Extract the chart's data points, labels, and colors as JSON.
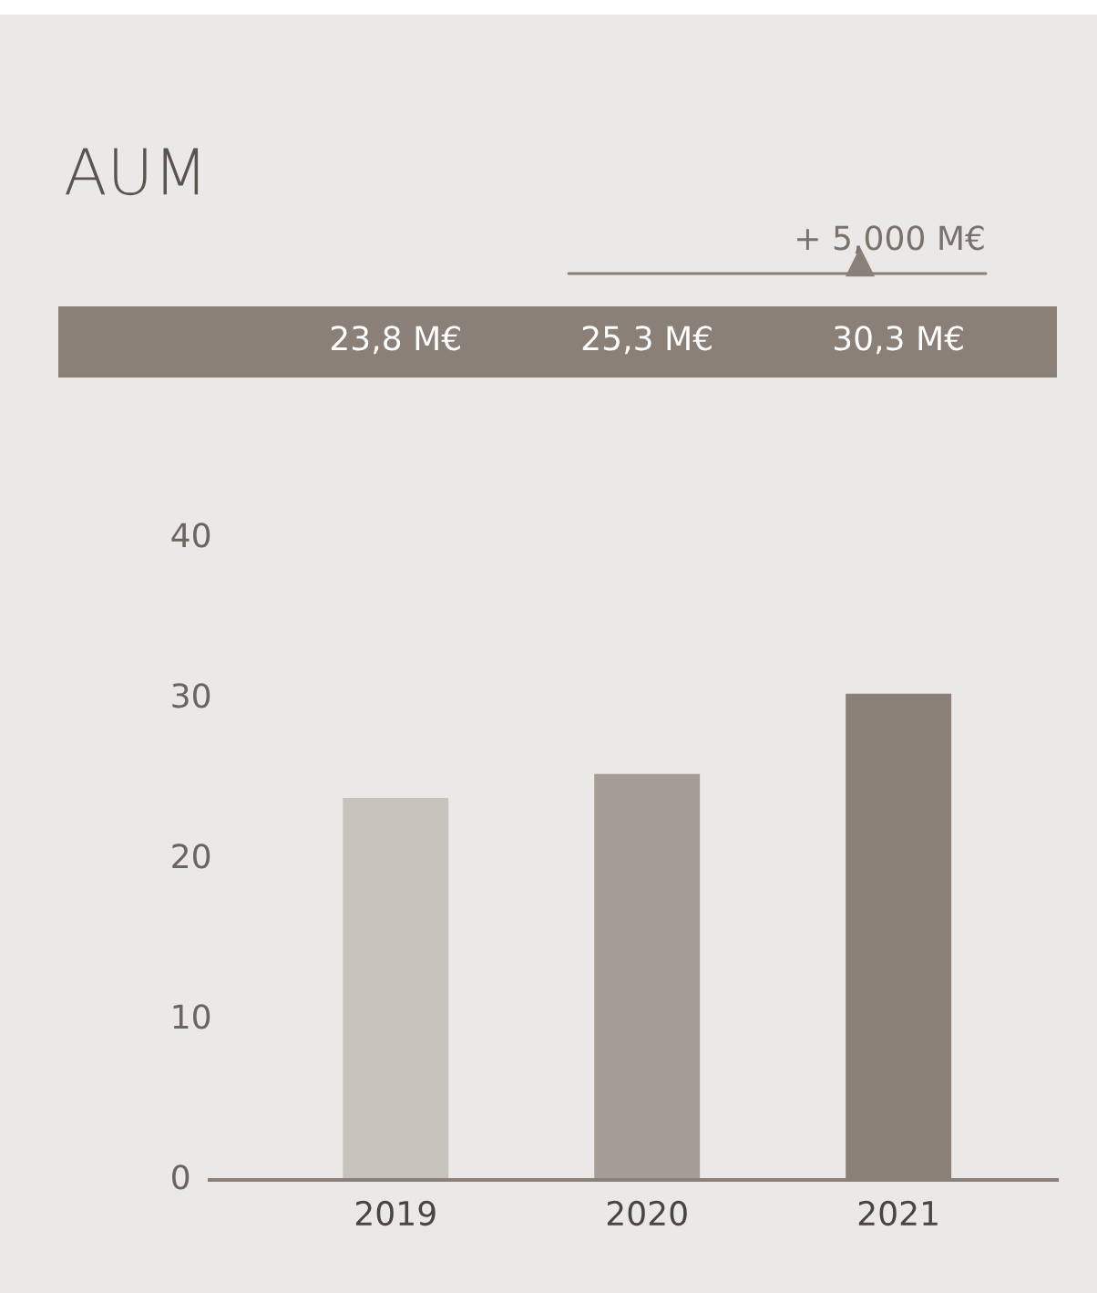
{
  "chart_data": {
    "type": "bar",
    "title": "AUM",
    "annotations": [
      "+ 5,000 M€"
    ],
    "categories": [
      "2019",
      "2020",
      "2021"
    ],
    "values": [
      23.8,
      25.3,
      30.3
    ],
    "colors": [
      "#c6c3bd",
      "#a49c95",
      "#8a8077"
    ],
    "value_labels": [
      "23,8 M€",
      "25,3 M€",
      "30,3 M€"
    ],
    "ylim": [
      0,
      40
    ],
    "yticks": [
      0,
      10,
      20,
      30,
      40
    ],
    "grid": false
  }
}
